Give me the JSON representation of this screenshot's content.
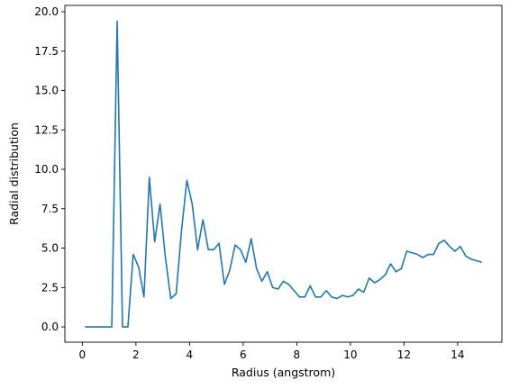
{
  "chart_data": {
    "type": "line",
    "xlabel": "Radius (angstrom)",
    "ylabel": "Radial distribution",
    "xlim": [
      -0.65,
      15.65
    ],
    "ylim": [
      -0.97,
      20.4
    ],
    "grid": false,
    "legend": "none",
    "xticks": [
      0,
      2,
      4,
      6,
      8,
      10,
      12,
      14
    ],
    "xtick_labels": [
      "0",
      "2",
      "4",
      "6",
      "8",
      "10",
      "12",
      "14"
    ],
    "yticks": [
      0,
      2.5,
      5,
      7.5,
      10,
      12.5,
      15,
      17.5,
      20
    ],
    "ytick_labels": [
      "0.0",
      "2.5",
      "5.0",
      "7.5",
      "10.0",
      "12.5",
      "15.0",
      "17.5",
      "20.0"
    ],
    "series": [
      {
        "color": "#1f77b4",
        "x": [
          0.1,
          0.3,
          0.5,
          0.7,
          0.9,
          1.1,
          1.3,
          1.5,
          1.7,
          1.9,
          2.1,
          2.3,
          2.5,
          2.7,
          2.9,
          3.1,
          3.3,
          3.5,
          3.7,
          3.9,
          4.1,
          4.3,
          4.5,
          4.7,
          4.9,
          5.1,
          5.3,
          5.5,
          5.7,
          5.9,
          6.1,
          6.3,
          6.5,
          6.7,
          6.9,
          7.1,
          7.3,
          7.5,
          7.7,
          7.9,
          8.1,
          8.3,
          8.5,
          8.7,
          8.9,
          9.1,
          9.3,
          9.5,
          9.7,
          9.9,
          10.1,
          10.3,
          10.5,
          10.7,
          10.9,
          11.1,
          11.3,
          11.5,
          11.7,
          11.9,
          12.1,
          12.3,
          12.5,
          12.7,
          12.9,
          13.1,
          13.3,
          13.5,
          13.7,
          13.9,
          14.1,
          14.3,
          14.5,
          14.7,
          14.9
        ],
        "y": [
          0,
          0,
          0,
          0,
          0,
          0,
          19.4,
          0,
          0,
          4.6,
          3.8,
          1.9,
          9.5,
          5.4,
          7.8,
          4.4,
          1.8,
          2.1,
          6.1,
          9.3,
          7.8,
          4.9,
          6.8,
          4.9,
          4.9,
          5.3,
          2.7,
          3.6,
          5.2,
          4.9,
          4.1,
          5.6,
          3.7,
          2.9,
          3.5,
          2.5,
          2.4,
          2.9,
          2.7,
          2.3,
          1.9,
          1.9,
          2.6,
          1.9,
          1.9,
          2.3,
          1.9,
          1.8,
          2.0,
          1.9,
          2.0,
          2.4,
          2.2,
          3.1,
          2.8,
          3.0,
          3.3,
          4.0,
          3.5,
          3.7,
          4.8,
          4.7,
          4.6,
          4.4,
          4.6,
          4.6,
          5.3,
          5.5,
          5.1,
          4.8,
          5.1,
          4.5,
          4.3,
          4.2,
          4.1
        ]
      }
    ]
  }
}
